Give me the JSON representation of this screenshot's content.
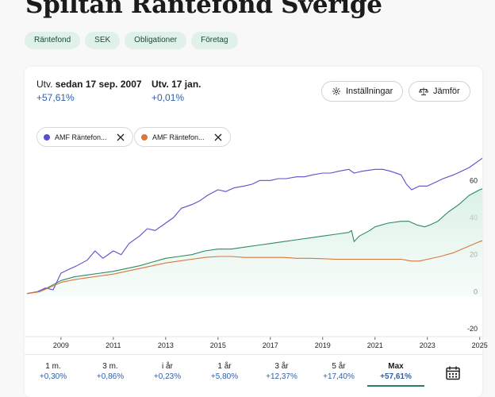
{
  "page": {
    "title": "Spiltan Räntefond Sverige"
  },
  "tags": [
    "Räntefond",
    "SEK",
    "Obligationer",
    "Företag"
  ],
  "stats": {
    "since": {
      "prefix": "Utv.",
      "label": "sedan 17 sep. 2007",
      "value": "+57,61%"
    },
    "ytd": {
      "prefix": "Utv.",
      "label": "17 jan.",
      "value": "+0,01%"
    }
  },
  "buttons": {
    "settings": "Inställningar",
    "compare": "Jämför"
  },
  "compare_chips": [
    {
      "label": "AMF Räntefon...",
      "color": "#5a4fcf"
    },
    {
      "label": "AMF Räntefon...",
      "color": "#d9773a"
    }
  ],
  "colors": {
    "fund": "#2e8a62",
    "compare1": "#5a4fcf",
    "compare2": "#d9773a",
    "accent": "#2e7d59",
    "positive": "#2f5fa8"
  },
  "chart_data": {
    "type": "line",
    "x_ticks": [
      "2009",
      "2011",
      "2013",
      "2015",
      "2017",
      "2019",
      "2021",
      "2023",
      "2025"
    ],
    "y_ticks": [
      "60",
      "40",
      "20",
      "0",
      "-20"
    ],
    "ylim": [
      -20,
      70
    ],
    "xlim": [
      2007.7,
      2025.1
    ],
    "series": [
      {
        "key": "fund",
        "color": "#2e8a62",
        "fill": true,
        "points": [
          [
            2007.7,
            -1
          ],
          [
            2008.2,
            0
          ],
          [
            2008.6,
            3
          ],
          [
            2009,
            6
          ],
          [
            2009.5,
            8
          ],
          [
            2010,
            9
          ],
          [
            2010.5,
            10
          ],
          [
            2011,
            11
          ],
          [
            2011.5,
            12.5
          ],
          [
            2012,
            14
          ],
          [
            2012.5,
            16
          ],
          [
            2013,
            18
          ],
          [
            2013.5,
            19
          ],
          [
            2014,
            20
          ],
          [
            2014.5,
            22
          ],
          [
            2015,
            23
          ],
          [
            2015.5,
            23
          ],
          [
            2016,
            24
          ],
          [
            2016.5,
            25
          ],
          [
            2017,
            26
          ],
          [
            2017.5,
            27
          ],
          [
            2018,
            28
          ],
          [
            2018.5,
            29
          ],
          [
            2019,
            30
          ],
          [
            2019.5,
            31
          ],
          [
            2020,
            32
          ],
          [
            2020.1,
            33
          ],
          [
            2020.2,
            27
          ],
          [
            2020.4,
            30
          ],
          [
            2020.8,
            33
          ],
          [
            2021,
            35
          ],
          [
            2021.5,
            37
          ],
          [
            2022,
            38
          ],
          [
            2022.3,
            38
          ],
          [
            2022.6,
            36
          ],
          [
            2022.9,
            35
          ],
          [
            2023.1,
            36
          ],
          [
            2023.4,
            38
          ],
          [
            2023.8,
            43
          ],
          [
            2024.2,
            47
          ],
          [
            2024.6,
            52
          ],
          [
            2025,
            55
          ],
          [
            2025.1,
            55.5
          ]
        ]
      },
      {
        "key": "compare1",
        "color": "#5a4fcf",
        "fill": false,
        "points": [
          [
            2007.7,
            -1
          ],
          [
            2008.1,
            0
          ],
          [
            2008.4,
            2
          ],
          [
            2008.7,
            1
          ],
          [
            2009,
            10
          ],
          [
            2009.3,
            12
          ],
          [
            2009.6,
            14
          ],
          [
            2010,
            17
          ],
          [
            2010.3,
            22
          ],
          [
            2010.6,
            18
          ],
          [
            2011,
            22
          ],
          [
            2011.3,
            20
          ],
          [
            2011.6,
            26
          ],
          [
            2012,
            30
          ],
          [
            2012.3,
            34
          ],
          [
            2012.6,
            33
          ],
          [
            2013,
            37
          ],
          [
            2013.3,
            40
          ],
          [
            2013.6,
            45
          ],
          [
            2014,
            47
          ],
          [
            2014.3,
            49
          ],
          [
            2014.6,
            52
          ],
          [
            2015,
            55
          ],
          [
            2015.3,
            54
          ],
          [
            2015.6,
            56
          ],
          [
            2016,
            57
          ],
          [
            2016.3,
            58
          ],
          [
            2016.6,
            60
          ],
          [
            2017,
            60
          ],
          [
            2017.3,
            61
          ],
          [
            2017.6,
            61
          ],
          [
            2018,
            62
          ],
          [
            2018.3,
            62
          ],
          [
            2018.6,
            63
          ],
          [
            2019,
            64
          ],
          [
            2019.3,
            64
          ],
          [
            2019.6,
            65
          ],
          [
            2020,
            66
          ],
          [
            2020.2,
            64
          ],
          [
            2020.5,
            65
          ],
          [
            2021,
            66
          ],
          [
            2021.3,
            66
          ],
          [
            2021.6,
            65
          ],
          [
            2022,
            63
          ],
          [
            2022.2,
            58
          ],
          [
            2022.4,
            55
          ],
          [
            2022.7,
            57
          ],
          [
            2023,
            57
          ],
          [
            2023.3,
            59
          ],
          [
            2023.6,
            61
          ],
          [
            2024,
            63
          ],
          [
            2024.3,
            65
          ],
          [
            2024.6,
            67
          ],
          [
            2025,
            71
          ],
          [
            2025.1,
            72
          ]
        ]
      },
      {
        "key": "compare2",
        "color": "#d9773a",
        "fill": false,
        "points": [
          [
            2007.7,
            -1
          ],
          [
            2008.2,
            0
          ],
          [
            2008.6,
            2.5
          ],
          [
            2009,
            5
          ],
          [
            2009.5,
            6.5
          ],
          [
            2010,
            7.5
          ],
          [
            2010.5,
            8.5
          ],
          [
            2011,
            9.5
          ],
          [
            2011.5,
            11
          ],
          [
            2012,
            12.5
          ],
          [
            2012.5,
            14
          ],
          [
            2013,
            15.5
          ],
          [
            2013.5,
            16.5
          ],
          [
            2014,
            17.5
          ],
          [
            2014.5,
            18.5
          ],
          [
            2015,
            19
          ],
          [
            2015.5,
            19
          ],
          [
            2016,
            18.5
          ],
          [
            2016.5,
            18.5
          ],
          [
            2017,
            18.5
          ],
          [
            2017.5,
            18.5
          ],
          [
            2018,
            18
          ],
          [
            2018.5,
            18
          ],
          [
            2019,
            17.8
          ],
          [
            2019.5,
            17.5
          ],
          [
            2020,
            17.5
          ],
          [
            2020.5,
            17.5
          ],
          [
            2021,
            17.5
          ],
          [
            2021.5,
            17.5
          ],
          [
            2022,
            17.5
          ],
          [
            2022.4,
            16.5
          ],
          [
            2022.7,
            16.5
          ],
          [
            2023,
            17.5
          ],
          [
            2023.5,
            19
          ],
          [
            2024,
            21
          ],
          [
            2024.5,
            24
          ],
          [
            2025,
            27
          ],
          [
            2025.1,
            27.5
          ]
        ]
      }
    ]
  },
  "period_tabs": [
    {
      "label": "1 m.",
      "value": "+0,30%",
      "active": false
    },
    {
      "label": "3 m.",
      "value": "+0,86%",
      "active": false
    },
    {
      "label": "i år",
      "value": "+0,23%",
      "active": false
    },
    {
      "label": "1 år",
      "value": "+5,80%",
      "active": false
    },
    {
      "label": "3 år",
      "value": "+12,37%",
      "active": false
    },
    {
      "label": "5 år",
      "value": "+17,40%",
      "active": false
    },
    {
      "label": "Max",
      "value": "+57,61%",
      "active": true
    }
  ]
}
